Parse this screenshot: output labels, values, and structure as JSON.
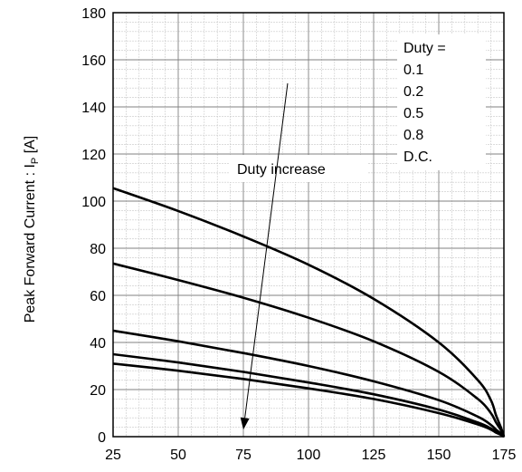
{
  "chart_data": {
    "type": "line",
    "title": "",
    "ylabel": "Peak Forward Current : I",
    "ylabel_sub": "P",
    "ylabel_unit": " [A]",
    "xlabel": "",
    "xlim": [
      25,
      175
    ],
    "ylim": [
      0,
      180
    ],
    "x_ticks": [
      25,
      50,
      75,
      100,
      125,
      150,
      175
    ],
    "y_ticks": [
      0,
      20,
      40,
      60,
      80,
      100,
      120,
      140,
      160,
      180
    ],
    "grid": true,
    "legend": {
      "placement": "top-right",
      "title": "Duty =",
      "entries": [
        "0.1",
        "0.2",
        "0.5",
        "0.8",
        "D.C."
      ]
    },
    "annotation": {
      "text": "Duty increase",
      "arrow_from": [
        92,
        150
      ],
      "arrow_to": [
        75,
        3
      ]
    },
    "series": [
      {
        "x": [
          25,
          50,
          75,
          100,
          125,
          150,
          165,
          170,
          172,
          174,
          175
        ],
        "values": [
          105.5,
          95.8,
          85.0,
          73.0,
          58.5,
          40.0,
          24.0,
          15.5,
          9.0,
          3.5,
          0
        ]
      },
      {
        "x": [
          25,
          50,
          75,
          100,
          125,
          150,
          165,
          170,
          172,
          174,
          175
        ],
        "values": [
          73.5,
          66.5,
          59.0,
          50.5,
          40.5,
          27.5,
          16.0,
          10.0,
          6.0,
          2.5,
          0
        ]
      },
      {
        "x": [
          25,
          50,
          75,
          100,
          125,
          150,
          165,
          170,
          172,
          174,
          175
        ],
        "values": [
          45.0,
          40.5,
          35.5,
          30.0,
          23.5,
          15.5,
          8.5,
          5.0,
          3.0,
          1.2,
          0
        ]
      },
      {
        "x": [
          25,
          50,
          75,
          100,
          125,
          150,
          165,
          170,
          172,
          174,
          175
        ],
        "values": [
          35.0,
          31.5,
          27.5,
          23.0,
          18.0,
          11.5,
          6.0,
          3.5,
          2.0,
          0.8,
          0
        ]
      },
      {
        "x": [
          25,
          50,
          75,
          100,
          125,
          150,
          165,
          170,
          172,
          174,
          175
        ],
        "values": [
          31.0,
          28.0,
          24.5,
          20.5,
          16.0,
          10.0,
          5.2,
          3.0,
          1.7,
          0.7,
          0
        ]
      }
    ],
    "colors": {
      "line": "#000000",
      "grid_major": "#808080",
      "grid_minor": "#c8c8c8"
    }
  }
}
